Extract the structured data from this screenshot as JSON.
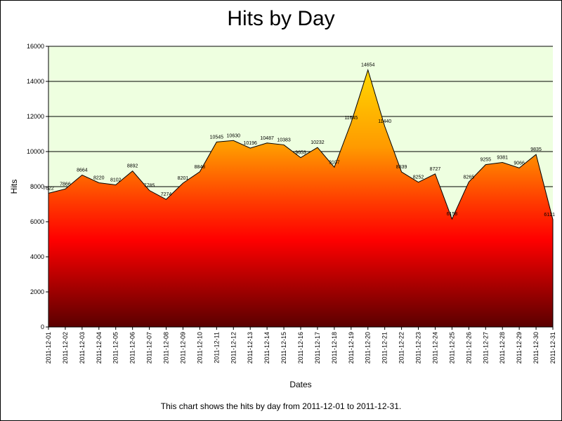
{
  "chart_data": {
    "type": "area",
    "title": "Hits by Day",
    "xlabel": "Dates",
    "ylabel": "Hits",
    "caption": "This chart shows the hits by day from 2011-12-01 to 2011-12-31.",
    "ylim": [
      0,
      16000
    ],
    "yticks": [
      0,
      2000,
      4000,
      6000,
      8000,
      10000,
      12000,
      14000,
      16000
    ],
    "grid": true,
    "legend": "none",
    "categories": [
      "2011-12-01",
      "2011-12-02",
      "2011-12-03",
      "2011-12-04",
      "2011-12-05",
      "2011-12-06",
      "2011-12-07",
      "2011-12-08",
      "2011-12-09",
      "2011-12-10",
      "2011-12-11",
      "2011-12-12",
      "2011-12-13",
      "2011-12-14",
      "2011-12-15",
      "2011-12-16",
      "2011-12-17",
      "2011-12-18",
      "2011-12-19",
      "2011-12-20",
      "2011-12-21",
      "2011-12-22",
      "2011-12-23",
      "2011-12-24",
      "2011-12-25",
      "2011-12-26",
      "2011-12-27",
      "2011-12-28",
      "2011-12-29",
      "2011-12-30",
      "2011-12-31"
    ],
    "values": [
      7622,
      7866,
      8664,
      8220,
      8102,
      8892,
      7785,
      7274,
      8201,
      8848,
      10545,
      10630,
      10196,
      10487,
      10383,
      9653,
      10232,
      9107,
      11645,
      14654,
      11440,
      8839,
      8252,
      8727,
      6158,
      8265,
      9255,
      9381,
      9066,
      9835,
      6121
    ],
    "colors": {
      "plot_background": "#eeffe0",
      "grid": "#000000",
      "gradient_top": "#ffd700",
      "gradient_mid1": "#ff9a00",
      "gradient_mid2": "#ff3800",
      "gradient_red": "#ff0000",
      "gradient_dark": "#5a0000"
    }
  }
}
